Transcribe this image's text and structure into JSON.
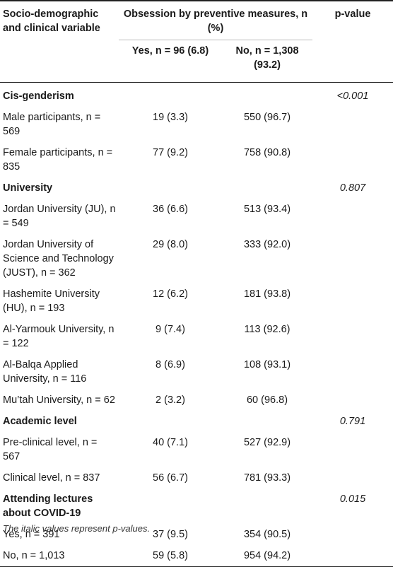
{
  "header": {
    "col1": "Socio-demographic and clinical variable",
    "group": "Obsession by preventive measures, n (%)",
    "yes": "Yes, n = 96 (6.8)",
    "no": "No, n = 1,308 (93.2)",
    "pvalue": "p-value"
  },
  "rows": [
    {
      "label": "Cis-genderism",
      "yes": "",
      "no": "",
      "p": "<0.001",
      "category": true
    },
    {
      "label": "Male participants, n = 569",
      "yes": "19 (3.3)",
      "no": "550 (96.7)",
      "p": ""
    },
    {
      "label": "Female participants, n = 835",
      "yes": "77 (9.2)",
      "no": "758 (90.8)",
      "p": ""
    },
    {
      "label": "University",
      "yes": "",
      "no": "",
      "p": "0.807",
      "category": true
    },
    {
      "label": "Jordan University (JU), n = 549",
      "yes": "36 (6.6)",
      "no": "513 (93.4)",
      "p": ""
    },
    {
      "label": "Jordan University of Science and Technology (JUST), n = 362",
      "yes": "29 (8.0)",
      "no": "333 (92.0)",
      "p": ""
    },
    {
      "label": "Hashemite University (HU), n = 193",
      "yes": "12 (6.2)",
      "no": "181 (93.8)",
      "p": ""
    },
    {
      "label": "Al-Yarmouk University, n = 122",
      "yes": "9 (7.4)",
      "no": "113 (92.6)",
      "p": ""
    },
    {
      "label": "Al-Balqa Applied University, n = 116",
      "yes": "8 (6.9)",
      "no": "108 (93.1)",
      "p": ""
    },
    {
      "label": "Mu’tah University, n = 62",
      "yes": "2 (3.2)",
      "no": "60 (96.8)",
      "p": ""
    },
    {
      "label": "Academic level",
      "yes": "",
      "no": "",
      "p": "0.791",
      "category": true
    },
    {
      "label": "Pre-clinical level, n = 567",
      "yes": "40 (7.1)",
      "no": "527 (92.9)",
      "p": ""
    },
    {
      "label": "Clinical level, n = 837",
      "yes": "56 (6.7)",
      "no": "781 (93.3)",
      "p": ""
    },
    {
      "label": "Attending lectures about COVID-19",
      "yes": "",
      "no": "",
      "p": "0.015",
      "category": true
    },
    {
      "label": "Yes, n = 391",
      "yes": "37 (9.5)",
      "no": "354 (90.5)",
      "p": ""
    },
    {
      "label": "No, n = 1,013",
      "yes": "59 (5.8)",
      "no": "954 (94.2)",
      "p": ""
    }
  ],
  "footnote": "The italic values represent p-values."
}
